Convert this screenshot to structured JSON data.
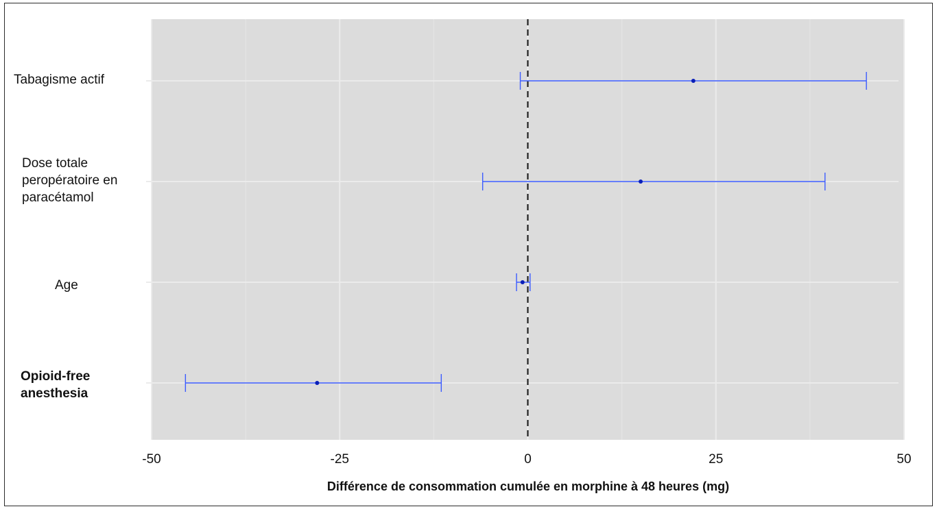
{
  "chart_data": {
    "type": "forest",
    "title": "",
    "xlabel": "Différence de consommation cumulée en morphine à 48 heures (mg)",
    "ylabel": "",
    "xlim": [
      -50,
      50
    ],
    "x_ticks": [
      -50,
      -25,
      0,
      25,
      50
    ],
    "x_tick_labels": [
      "-50",
      "-25",
      "0",
      "25",
      "50"
    ],
    "reference_line": 0,
    "grid": true,
    "colors": {
      "panel": "#dcdcdc",
      "grid": "#ebebeb",
      "interval": "#3b5bff",
      "point": "#0a1fb8",
      "reference": "#222222"
    },
    "rows": [
      {
        "label": "Tabagisme actif",
        "estimate": 22,
        "ci_low": -1,
        "ci_high": 45,
        "bold": false
      },
      {
        "label": "Dose totale peropératoire en paracétamol",
        "estimate": 15,
        "ci_low": -6,
        "ci_high": 39.5,
        "bold": false
      },
      {
        "label": "Age",
        "estimate": -0.7,
        "ci_low": -1.5,
        "ci_high": 0.3,
        "bold": false
      },
      {
        "label": "Opioid-free anesthesia",
        "estimate": -28,
        "ci_low": -45.5,
        "ci_high": -11.5,
        "bold": true
      }
    ]
  }
}
